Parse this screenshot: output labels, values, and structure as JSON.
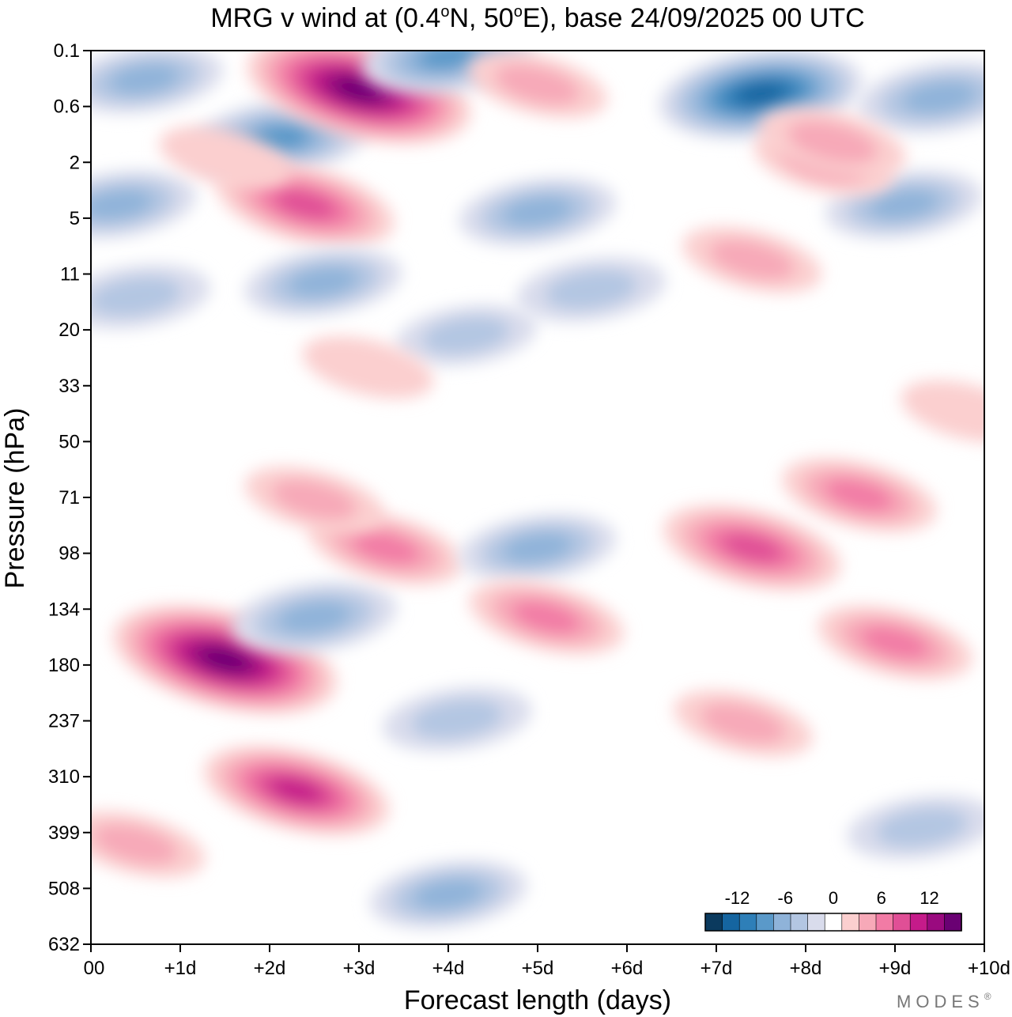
{
  "chart_data": {
    "type": "heatmap",
    "title_parts": [
      "MRG v wind at (0.4",
      "o",
      "N, 50",
      "o",
      "E),  base 24/09/2025  00 UTC"
    ],
    "xlabel": "Forecast length (days)",
    "ylabel": "Pressure (hPa)",
    "x_ticks": [
      "00",
      "+1d",
      "+2d",
      "+3d",
      "+4d",
      "+5d",
      "+6d",
      "+7d",
      "+8d",
      "+9d",
      "+10d"
    ],
    "x_range_days": [
      0,
      10
    ],
    "y_ticks": [
      "0.1",
      "0.6",
      "2",
      "5",
      "11",
      "20",
      "33",
      "50",
      "71",
      "98",
      "134",
      "180",
      "237",
      "310",
      "399",
      "508",
      "632"
    ],
    "y_range_hpa": [
      0.1,
      632
    ],
    "colorbar": {
      "tick_labels": [
        "-12",
        "-6",
        "0",
        "6",
        "12"
      ],
      "tick_values": [
        -12,
        -6,
        0,
        6,
        12
      ],
      "levels": [
        -16,
        -14,
        -12,
        -10,
        -8,
        -6,
        -4,
        -2,
        2,
        4,
        6,
        8,
        10,
        12,
        14,
        16
      ],
      "colors": [
        "#0b3a5e",
        "#1565a0",
        "#2e7fb8",
        "#5a99c9",
        "#8fb3d9",
        "#b3c6e2",
        "#d9dcec",
        "#ffffff",
        "#fbcfcf",
        "#f7a9b8",
        "#f27ba5",
        "#e04f96",
        "#c51b8a",
        "#9a0a7f",
        "#6a0173"
      ]
    },
    "anomalies": [
      {
        "day": 0.6,
        "p": 0.25,
        "v": -6
      },
      {
        "day": 2.1,
        "p": 1.2,
        "v": -9
      },
      {
        "day": 0.3,
        "p": 4.0,
        "v": -6
      },
      {
        "day": 3.0,
        "p": 0.35,
        "v": 15
      },
      {
        "day": 2.4,
        "p": 4.0,
        "v": 9
      },
      {
        "day": 1.5,
        "p": 1.8,
        "v": 3
      },
      {
        "day": 4.0,
        "p": 0.12,
        "v": -8
      },
      {
        "day": 7.5,
        "p": 0.4,
        "v": -12
      },
      {
        "day": 9.5,
        "p": 0.45,
        "v": -7
      },
      {
        "day": 5.0,
        "p": 4.5,
        "v": -6
      },
      {
        "day": 9.1,
        "p": 4.0,
        "v": -6
      },
      {
        "day": 8.2,
        "p": 2.0,
        "v": 4
      },
      {
        "day": 8.3,
        "p": 1.3,
        "v": 5
      },
      {
        "day": 5.0,
        "p": 0.3,
        "v": 4
      },
      {
        "day": 2.6,
        "p": 12,
        "v": -6
      },
      {
        "day": 0.5,
        "p": 14,
        "v": -5
      },
      {
        "day": 5.6,
        "p": 13,
        "v": -5
      },
      {
        "day": 7.4,
        "p": 9,
        "v": 4
      },
      {
        "day": 4.2,
        "p": 21,
        "v": -4
      },
      {
        "day": 3.1,
        "p": 28,
        "v": 3
      },
      {
        "day": 1.5,
        "p": 175,
        "v": 15
      },
      {
        "day": 2.3,
        "p": 330,
        "v": 10
      },
      {
        "day": 0.5,
        "p": 420,
        "v": 4
      },
      {
        "day": 2.5,
        "p": 140,
        "v": -7
      },
      {
        "day": 3.3,
        "p": 95,
        "v": 6
      },
      {
        "day": 2.5,
        "p": 72,
        "v": 4
      },
      {
        "day": 5.0,
        "p": 95,
        "v": -6
      },
      {
        "day": 5.1,
        "p": 140,
        "v": 6
      },
      {
        "day": 7.4,
        "p": 95,
        "v": 9
      },
      {
        "day": 8.6,
        "p": 70,
        "v": 6
      },
      {
        "day": 9.0,
        "p": 160,
        "v": 6
      },
      {
        "day": 7.3,
        "p": 240,
        "v": 4
      },
      {
        "day": 4.1,
        "p": 235,
        "v": -5
      },
      {
        "day": 4.0,
        "p": 520,
        "v": -6
      },
      {
        "day": 9.3,
        "p": 390,
        "v": -5
      },
      {
        "day": 9.8,
        "p": 40,
        "v": 3
      }
    ]
  },
  "legend": {
    "labels": [
      "-12",
      "-6",
      "0",
      "6",
      "12"
    ]
  },
  "watermark": "MODES",
  "watermark_mark": "®"
}
